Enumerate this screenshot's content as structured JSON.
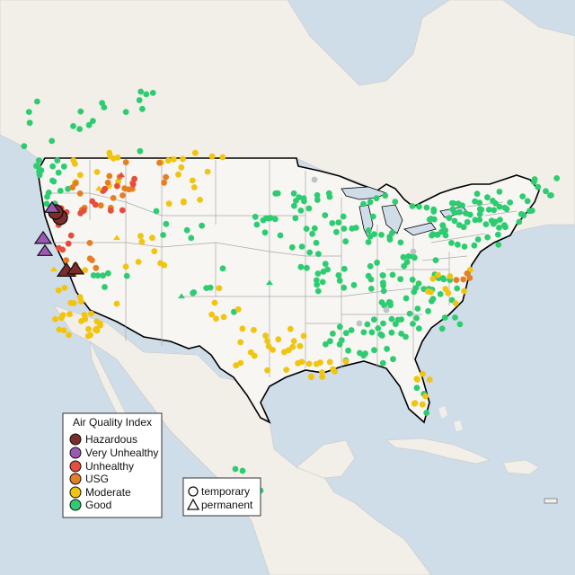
{
  "legend": {
    "title": "Air Quality Index",
    "categories": [
      {
        "label": "Hazardous",
        "color": "#7e2b2b"
      },
      {
        "label": "Very Unhealthy",
        "color": "#9b59b6"
      },
      {
        "label": "Unhealthy",
        "color": "#e74c3c"
      },
      {
        "label": "USG",
        "color": "#e67e22"
      },
      {
        "label": "Moderate",
        "color": "#f1c40f"
      },
      {
        "label": "Good",
        "color": "#2ecc71"
      }
    ]
  },
  "shape_legend": {
    "items": [
      {
        "label": "temporary",
        "shape": "circle"
      },
      {
        "label": "permanent",
        "shape": "triangle"
      }
    ]
  },
  "colors": {
    "water": "#cfdde9",
    "land": "#f2efe9",
    "usa_land": "#f7f6f3",
    "border": "#000000",
    "state_lines": "#a9a9a9",
    "no_data": "#bdc3c7"
  }
}
